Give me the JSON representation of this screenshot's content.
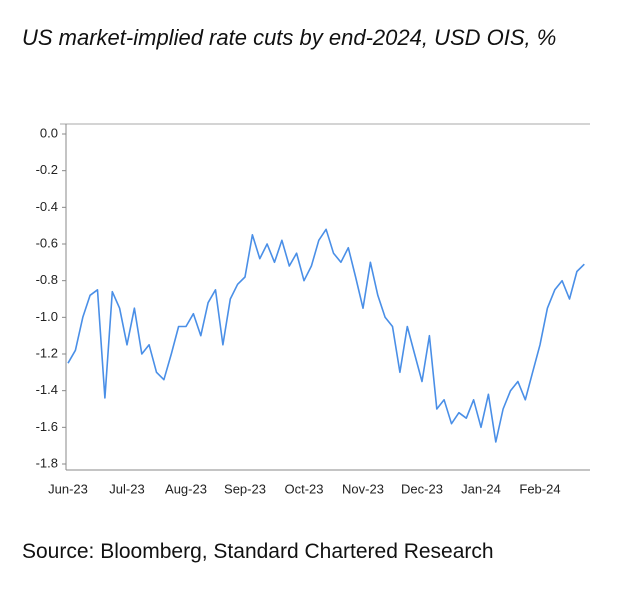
{
  "chart_data": {
    "type": "line",
    "title": "US market-implied rate cuts by end-2024, USD OIS, %",
    "source": "Source: Bloomberg, Standard Chartered Research",
    "x": [
      "Jun-23",
      null,
      null,
      null,
      null,
      null,
      null,
      null,
      "Jul-23",
      null,
      null,
      null,
      null,
      null,
      null,
      null,
      "Aug-23",
      null,
      null,
      null,
      null,
      null,
      null,
      null,
      "Sep-23",
      null,
      null,
      null,
      null,
      null,
      null,
      null,
      "Oct-23",
      null,
      null,
      null,
      null,
      null,
      null,
      null,
      "Nov-23",
      null,
      null,
      null,
      null,
      null,
      null,
      null,
      "Dec-23",
      null,
      null,
      null,
      null,
      null,
      null,
      null,
      "Jan-24",
      null,
      null,
      null,
      null,
      null,
      null,
      null,
      "Feb-24",
      null,
      null,
      null,
      null,
      null,
      null
    ],
    "series": [
      {
        "color": "#4a8fe7",
        "values": [
          -1.25,
          -1.18,
          -1.0,
          -0.88,
          -0.85,
          -1.44,
          -0.86,
          -0.95,
          -1.15,
          -0.95,
          -1.2,
          -1.15,
          -1.3,
          -1.34,
          -1.2,
          -1.05,
          -1.05,
          -0.98,
          -1.1,
          -0.92,
          -0.85,
          -1.15,
          -0.9,
          -0.82,
          -0.78,
          -0.55,
          -0.68,
          -0.6,
          -0.7,
          -0.58,
          -0.72,
          -0.65,
          -0.8,
          -0.72,
          -0.58,
          -0.52,
          -0.65,
          -0.7,
          -0.62,
          -0.78,
          -0.95,
          -0.7,
          -0.88,
          -1.0,
          -1.05,
          -1.3,
          -1.05,
          -1.2,
          -1.35,
          -1.1,
          -1.5,
          -1.45,
          -1.58,
          -1.52,
          -1.55,
          -1.45,
          -1.6,
          -1.42,
          -1.68,
          -1.5,
          -1.4,
          -1.35,
          -1.45,
          -1.3,
          -1.15,
          -0.95,
          -0.85,
          -0.8,
          -0.9,
          -0.75,
          -0.71
        ]
      }
    ],
    "ylim": [
      -1.8,
      0
    ],
    "yticks": [
      {
        "value": 0,
        "label": "0.0"
      },
      -0.2,
      -0.4,
      -0.6,
      -0.8,
      {
        "value": -1,
        "label": "-1.0"
      },
      -1.2,
      -1.4,
      -1.6,
      -1.8
    ]
  }
}
